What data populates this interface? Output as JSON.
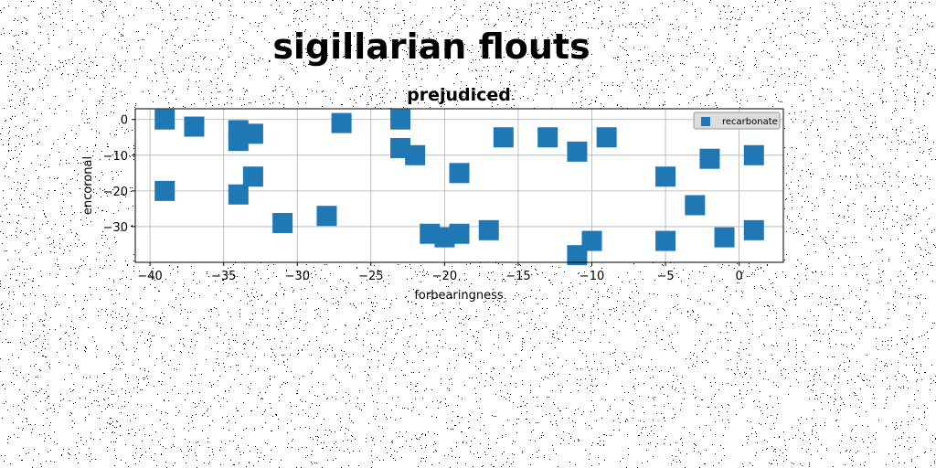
{
  "figure": {
    "suptitle": "sigillarian flouts",
    "background": "#ffffff",
    "noise_color": "#000000"
  },
  "chart_data": {
    "type": "scatter",
    "title": "prejudiced",
    "xlabel": "forbearingness",
    "ylabel": "encoronal",
    "xlim": [
      -41,
      3
    ],
    "ylim": [
      -40,
      3
    ],
    "xticks": [
      -40,
      -35,
      -30,
      -25,
      -20,
      -15,
      -10,
      -5,
      0
    ],
    "xtick_labels": [
      "−40",
      "−35",
      "−30",
      "−25",
      "−20",
      "−15",
      "−10",
      "−5",
      "0"
    ],
    "yticks": [
      0,
      -10,
      -20,
      -30
    ],
    "ytick_labels": [
      "0",
      "−10",
      "−20",
      "−30"
    ],
    "grid": true,
    "legend": {
      "position": "top-right"
    },
    "marker": "square",
    "series": [
      {
        "name": "recarbonate",
        "color": "#1f77b4",
        "points": [
          {
            "x": -39,
            "y": 0
          },
          {
            "x": -37,
            "y": -2
          },
          {
            "x": -34,
            "y": -3
          },
          {
            "x": -34,
            "y": -6
          },
          {
            "x": -33,
            "y": -4
          },
          {
            "x": -27,
            "y": -1
          },
          {
            "x": -23,
            "y": 0
          },
          {
            "x": -23,
            "y": -8
          },
          {
            "x": -22,
            "y": -10
          },
          {
            "x": -16,
            "y": -5
          },
          {
            "x": -13,
            "y": -5
          },
          {
            "x": -11,
            "y": -9
          },
          {
            "x": -9,
            "y": -5
          },
          {
            "x": -39,
            "y": -20
          },
          {
            "x": -34,
            "y": -21
          },
          {
            "x": -33,
            "y": -16
          },
          {
            "x": -19,
            "y": -15
          },
          {
            "x": -31,
            "y": -29
          },
          {
            "x": -28,
            "y": -27
          },
          {
            "x": -21,
            "y": -32
          },
          {
            "x": -20,
            "y": -33
          },
          {
            "x": -19,
            "y": -32
          },
          {
            "x": -17,
            "y": -31
          },
          {
            "x": -11,
            "y": -38
          },
          {
            "x": -10,
            "y": -34
          },
          {
            "x": -5,
            "y": -16
          },
          {
            "x": -5,
            "y": -34
          },
          {
            "x": -3,
            "y": -24
          },
          {
            "x": -2,
            "y": -11
          },
          {
            "x": -1,
            "y": -33
          },
          {
            "x": 1,
            "y": -10
          },
          {
            "x": 1,
            "y": -31
          }
        ]
      }
    ]
  }
}
